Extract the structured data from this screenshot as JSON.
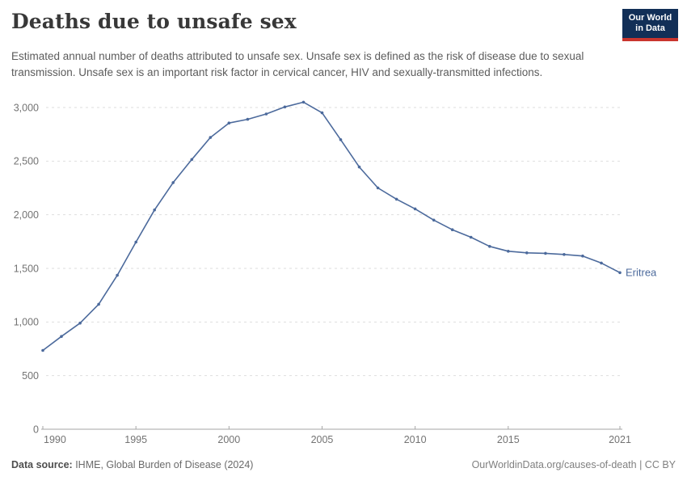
{
  "header": {
    "title": "Deaths due to unsafe sex",
    "subtitle": "Estimated annual number of deaths attributed to unsafe sex. Unsafe sex is defined as the risk of disease due to sexual transmission. Unsafe sex is an important risk factor in cervical cancer, HIV and sexually-transmitted infections."
  },
  "logo": {
    "line1": "Our World",
    "line2": "in Data",
    "bg_color": "#122f57",
    "bar_color": "#c9352e"
  },
  "chart_data": {
    "type": "line",
    "title": "Deaths due to unsafe sex",
    "x": [
      1990,
      1991,
      1992,
      1993,
      1994,
      1995,
      1996,
      1997,
      1998,
      1999,
      2000,
      2001,
      2002,
      2003,
      2004,
      2005,
      2006,
      2007,
      2008,
      2009,
      2010,
      2011,
      2012,
      2013,
      2014,
      2015,
      2016,
      2017,
      2018,
      2019,
      2020,
      2021
    ],
    "series": [
      {
        "name": "Eritrea",
        "color": "#4C6A9C",
        "values": [
          735,
          865,
          990,
          1165,
          1435,
          1745,
          2045,
          2300,
          2515,
          2720,
          2855,
          2890,
          2940,
          3005,
          3050,
          2950,
          2700,
          2445,
          2250,
          2145,
          2055,
          1950,
          1860,
          1790,
          1705,
          1660,
          1645,
          1640,
          1630,
          1615,
          1550,
          1460
        ]
      }
    ],
    "xlabel": "",
    "ylabel": "",
    "ylim": [
      0,
      3000
    ],
    "yticks": {
      "values": [
        0,
        500,
        1000,
        1500,
        2000,
        2500,
        3000
      ],
      "labels": [
        "0",
        "500",
        "1,000",
        "1,500",
        "2,000",
        "2,500",
        "3,000"
      ]
    },
    "xticks": {
      "values": [
        1990,
        1995,
        2000,
        2005,
        2010,
        2015,
        2021
      ],
      "labels": [
        "1990",
        "1995",
        "2000",
        "2005",
        "2010",
        "2015",
        "2021"
      ]
    },
    "grid": "horizontal-dashed",
    "legend_position": "end-of-line-label",
    "end_label": "Eritrea",
    "colors": {
      "line": "#4C6A9C",
      "gridline": "#dedede",
      "axis": "#a6a6a6",
      "tick_text": "#737373"
    }
  },
  "footer": {
    "source_label": "Data source:",
    "source_value": " IHME, Global Burden of Disease (2024)",
    "credit": "OurWorldinData.org/causes-of-death | CC BY"
  }
}
